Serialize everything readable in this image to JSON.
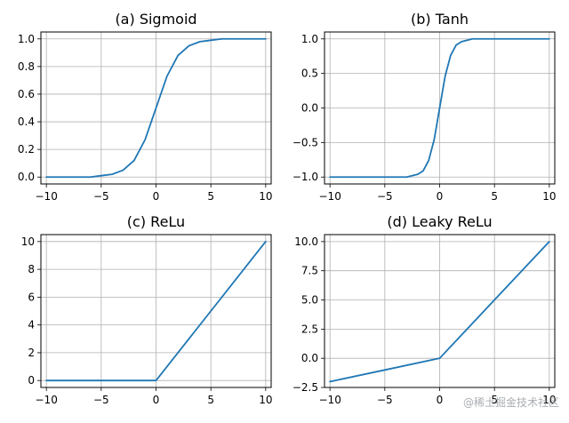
{
  "figure": {
    "watermark": "@稀土掘金技术社区"
  },
  "chart_data": [
    {
      "type": "line",
      "title": "(a) Sigmoid",
      "function": "sigmoid",
      "xlim": [
        -10.5,
        10.5
      ],
      "ylim": [
        -0.05,
        1.05
      ],
      "xticks": [
        -10,
        -5,
        0,
        5,
        10
      ],
      "xtick_labels": [
        "−10",
        "−5",
        "0",
        "5",
        "10"
      ],
      "yticks": [
        0,
        0.2,
        0.4,
        0.6,
        0.8,
        1.0
      ],
      "ytick_labels": [
        "0.0",
        "0.2",
        "0.4",
        "0.6",
        "0.8",
        "1.0"
      ],
      "grid": true,
      "color": "#1f77b4",
      "series": [
        {
          "x": [
            -10,
            -9,
            -8,
            -7,
            -6,
            -5,
            -4,
            -3,
            -2,
            -1,
            0,
            1,
            2,
            3,
            4,
            5,
            6,
            7,
            8,
            9,
            10
          ],
          "y": [
            0.0,
            0.0,
            0.0,
            0.0,
            0.0,
            0.01,
            0.02,
            0.05,
            0.12,
            0.27,
            0.5,
            0.73,
            0.88,
            0.95,
            0.98,
            0.99,
            1.0,
            1.0,
            1.0,
            1.0,
            1.0
          ]
        }
      ]
    },
    {
      "type": "line",
      "title": "(b) Tanh",
      "function": "tanh",
      "xlim": [
        -10.5,
        10.5
      ],
      "ylim": [
        -1.1,
        1.1
      ],
      "xticks": [
        -10,
        -5,
        0,
        5,
        10
      ],
      "xtick_labels": [
        "−10",
        "−5",
        "0",
        "5",
        "10"
      ],
      "yticks": [
        -1.0,
        -0.5,
        0.0,
        0.5,
        1.0
      ],
      "ytick_labels": [
        "−1.0",
        "−0.5",
        "0.0",
        "0.5",
        "1.0"
      ],
      "grid": true,
      "color": "#1f77b4",
      "series": [
        {
          "x": [
            -10,
            -5,
            -4,
            -3,
            -2,
            -1.5,
            -1,
            -0.5,
            0,
            0.5,
            1,
            1.5,
            2,
            3,
            4,
            5,
            10
          ],
          "y": [
            -1.0,
            -1.0,
            -1.0,
            -1.0,
            -0.96,
            -0.91,
            -0.76,
            -0.46,
            0.0,
            0.46,
            0.76,
            0.91,
            0.96,
            1.0,
            1.0,
            1.0,
            1.0
          ]
        }
      ]
    },
    {
      "type": "line",
      "title": "(c) ReLu",
      "function": "relu",
      "xlim": [
        -10.5,
        10.5
      ],
      "ylim": [
        -0.5,
        10.5
      ],
      "xticks": [
        -10,
        -5,
        0,
        5,
        10
      ],
      "xtick_labels": [
        "−10",
        "−5",
        "0",
        "5",
        "10"
      ],
      "yticks": [
        0,
        2,
        4,
        6,
        8,
        10
      ],
      "ytick_labels": [
        "0",
        "2",
        "4",
        "6",
        "8",
        "10"
      ],
      "grid": true,
      "color": "#1f77b4",
      "series": [
        {
          "x": [
            -10,
            -5,
            0,
            5,
            10
          ],
          "y": [
            0,
            0,
            0,
            5,
            10
          ]
        }
      ]
    },
    {
      "type": "line",
      "title": "(d) Leaky ReLu",
      "function": "leaky_relu",
      "xlim": [
        -10.5,
        10.5
      ],
      "ylim": [
        -2.5,
        10.6
      ],
      "xticks": [
        -10,
        -5,
        0,
        5,
        10
      ],
      "xtick_labels": [
        "−10",
        "−5",
        "0",
        "5",
        "10"
      ],
      "yticks": [
        -2.5,
        0.0,
        2.5,
        5.0,
        7.5,
        10.0
      ],
      "ytick_labels": [
        "−2.5",
        "0.0",
        "2.5",
        "5.0",
        "7.5",
        "10.0"
      ],
      "grid": true,
      "color": "#1f77b4",
      "series": [
        {
          "x": [
            -10,
            -5,
            0,
            5,
            10
          ],
          "y": [
            -2.0,
            -1.0,
            0.0,
            5.0,
            10.0
          ]
        }
      ]
    }
  ]
}
